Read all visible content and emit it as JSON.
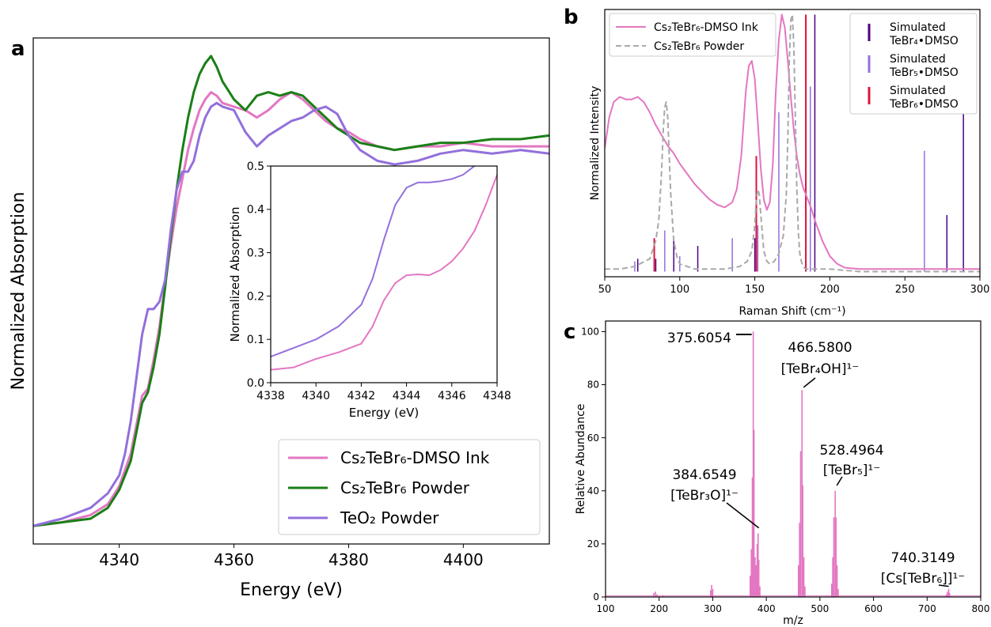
{
  "colors": {
    "ink": "#e377c2",
    "powder": "#1a7f16",
    "teo2": "#9370db",
    "dashed": "#a9a9a9",
    "tebr4": "#4b0082",
    "tebr5": "#9370db",
    "tebr6": "#dc143c",
    "ms": "#e377c2"
  },
  "panels": {
    "a": {
      "letter": "a"
    },
    "b": {
      "letter": "b"
    },
    "c": {
      "letter": "c"
    }
  },
  "chart_data": [
    {
      "id": "a",
      "type": "line",
      "xlabel": "Energy (eV)",
      "ylabel": "Normalized Absorption",
      "xlim": [
        4325,
        4415
      ],
      "ylim": [
        -0.05,
        1.35
      ],
      "yticks_shown": false,
      "xticks": [
        4340,
        4360,
        4380,
        4400
      ],
      "legend_position": "lower-right",
      "series": [
        {
          "name": "Cs₂TeBr₆-DMSO Ink",
          "color_key": "ink",
          "x": [
            4325,
            4330,
            4335,
            4338,
            4340,
            4342,
            4343,
            4344,
            4345,
            4346,
            4347,
            4348,
            4349,
            4350,
            4351,
            4352,
            4353,
            4354,
            4355,
            4356,
            4357,
            4358,
            4360,
            4362,
            4364,
            4366,
            4368,
            4370,
            4372,
            4374,
            4376,
            4378,
            4380,
            4382,
            4385,
            4388,
            4392,
            4396,
            4400,
            4405,
            4410,
            4415
          ],
          "values": [
            0.0,
            0.01,
            0.03,
            0.06,
            0.11,
            0.2,
            0.28,
            0.36,
            0.38,
            0.46,
            0.55,
            0.67,
            0.78,
            0.88,
            0.96,
            1.04,
            1.1,
            1.15,
            1.18,
            1.2,
            1.19,
            1.17,
            1.16,
            1.15,
            1.13,
            1.15,
            1.18,
            1.2,
            1.18,
            1.15,
            1.12,
            1.1,
            1.09,
            1.07,
            1.05,
            1.04,
            1.05,
            1.05,
            1.06,
            1.05,
            1.05,
            1.05
          ]
        },
        {
          "name": "Cs₂TeBr₆ Powder",
          "color_key": "powder",
          "x": [
            4325,
            4330,
            4335,
            4338,
            4340,
            4342,
            4343,
            4344,
            4345,
            4346,
            4347,
            4348,
            4349,
            4350,
            4351,
            4352,
            4353,
            4354,
            4355,
            4356,
            4357,
            4358,
            4360,
            4362,
            4364,
            4366,
            4368,
            4370,
            4372,
            4374,
            4376,
            4378,
            4380,
            4382,
            4385,
            4388,
            4392,
            4396,
            4400,
            4405,
            4410,
            4415
          ],
          "values": [
            0.0,
            0.01,
            0.02,
            0.05,
            0.1,
            0.18,
            0.26,
            0.34,
            0.37,
            0.44,
            0.53,
            0.66,
            0.8,
            0.93,
            1.04,
            1.13,
            1.2,
            1.25,
            1.28,
            1.3,
            1.27,
            1.23,
            1.18,
            1.15,
            1.19,
            1.2,
            1.19,
            1.2,
            1.19,
            1.16,
            1.13,
            1.1,
            1.08,
            1.06,
            1.05,
            1.04,
            1.05,
            1.06,
            1.06,
            1.07,
            1.07,
            1.08
          ]
        },
        {
          "name": "TeO₂ Powder",
          "color_key": "teo2",
          "x": [
            4325,
            4330,
            4335,
            4338,
            4340,
            4341,
            4342,
            4343,
            4344,
            4345,
            4346,
            4347,
            4348,
            4349,
            4350,
            4351,
            4352,
            4353,
            4354,
            4355,
            4356,
            4357,
            4358,
            4360,
            4362,
            4364,
            4366,
            4368,
            4370,
            4372,
            4374,
            4376,
            4378,
            4380,
            4382,
            4385,
            4388,
            4392,
            4396,
            4400,
            4405,
            4410,
            4415
          ],
          "values": [
            0.0,
            0.02,
            0.05,
            0.09,
            0.14,
            0.2,
            0.29,
            0.41,
            0.53,
            0.6,
            0.6,
            0.62,
            0.68,
            0.82,
            0.93,
            0.98,
            0.98,
            1.01,
            1.08,
            1.13,
            1.16,
            1.17,
            1.16,
            1.15,
            1.09,
            1.05,
            1.08,
            1.1,
            1.12,
            1.13,
            1.15,
            1.16,
            1.14,
            1.08,
            1.04,
            1.01,
            1.0,
            1.01,
            1.03,
            1.04,
            1.03,
            1.04,
            1.03
          ]
        }
      ]
    },
    {
      "id": "a-inset",
      "type": "line",
      "xlabel": "Energy (eV)",
      "ylabel": "Normalized Absorption",
      "xlim": [
        4338,
        4348
      ],
      "ylim": [
        0.0,
        0.5
      ],
      "xticks": [
        4338,
        4340,
        4342,
        4344,
        4346,
        4348
      ],
      "yticks": [
        0.0,
        0.1,
        0.2,
        0.3,
        0.4,
        0.5
      ],
      "series": [
        {
          "color_key": "teo2",
          "x": [
            4338,
            4339,
            4340,
            4341,
            4342,
            4342.5,
            4343,
            4343.5,
            4344,
            4344.5,
            4345,
            4345.5,
            4346,
            4346.5,
            4347,
            4347.5,
            4348
          ],
          "values": [
            0.06,
            0.08,
            0.1,
            0.13,
            0.18,
            0.24,
            0.33,
            0.41,
            0.45,
            0.462,
            0.462,
            0.465,
            0.47,
            0.48,
            0.5,
            0.52,
            0.55
          ]
        },
        {
          "color_key": "ink",
          "x": [
            4338,
            4339,
            4340,
            4341,
            4342,
            4342.5,
            4343,
            4343.5,
            4344,
            4344.5,
            4345,
            4345.5,
            4346,
            4346.5,
            4347,
            4347.5,
            4348
          ],
          "values": [
            0.03,
            0.035,
            0.055,
            0.07,
            0.09,
            0.13,
            0.19,
            0.23,
            0.248,
            0.25,
            0.248,
            0.26,
            0.28,
            0.31,
            0.35,
            0.41,
            0.48
          ]
        }
      ]
    },
    {
      "id": "b",
      "type": "line",
      "xlabel": "Raman Shift (cm⁻¹)",
      "ylabel": "Normalized Intensity",
      "xlim": [
        50,
        300
      ],
      "ylim": [
        -0.02,
        1.02
      ],
      "yticks_shown": false,
      "xticks": [
        50,
        100,
        150,
        200,
        250,
        300
      ],
      "legend_position": "top-left and top-right",
      "series": [
        {
          "name": "Cs₂TeBr₆-DMSO Ink",
          "color_key": "ink",
          "x": [
            50,
            53,
            56,
            60,
            64,
            68,
            72,
            76,
            80,
            84,
            88,
            92,
            96,
            100,
            105,
            110,
            115,
            120,
            125,
            130,
            135,
            138,
            141,
            144,
            146,
            148,
            150,
            152,
            154,
            156,
            158,
            160,
            162,
            164,
            166,
            168,
            170,
            172,
            174,
            176,
            178,
            180,
            182,
            184,
            186,
            188,
            190,
            195,
            200,
            205,
            210,
            220,
            230,
            250,
            270,
            300
          ],
          "values": [
            0.48,
            0.6,
            0.66,
            0.68,
            0.67,
            0.67,
            0.68,
            0.66,
            0.62,
            0.57,
            0.53,
            0.49,
            0.46,
            0.42,
            0.38,
            0.34,
            0.31,
            0.28,
            0.26,
            0.25,
            0.27,
            0.32,
            0.45,
            0.7,
            0.8,
            0.82,
            0.75,
            0.58,
            0.4,
            0.28,
            0.24,
            0.27,
            0.42,
            0.7,
            0.9,
            1.0,
            0.95,
            0.82,
            0.68,
            0.55,
            0.45,
            0.38,
            0.33,
            0.3,
            0.27,
            0.24,
            0.2,
            0.12,
            0.06,
            0.03,
            0.015,
            0.01,
            0.01,
            0.01,
            0.01,
            0.01
          ]
        },
        {
          "name": "Cs₂TeBr₆ Powder",
          "color_key": "dashed",
          "dashed": true,
          "x": [
            50,
            60,
            70,
            80,
            84,
            86,
            88,
            89,
            90,
            91,
            92,
            93,
            94,
            96,
            98,
            100,
            110,
            120,
            130,
            140,
            145,
            148,
            150,
            151,
            152,
            153,
            154,
            156,
            158,
            160,
            163,
            166,
            169,
            171,
            172,
            173,
            174,
            175,
            176,
            177,
            178,
            179,
            180,
            181,
            182,
            184,
            186,
            190,
            200,
            220,
            250,
            300
          ],
          "values": [
            0.01,
            0.01,
            0.02,
            0.05,
            0.12,
            0.2,
            0.4,
            0.55,
            0.64,
            0.66,
            0.6,
            0.45,
            0.3,
            0.12,
            0.06,
            0.03,
            0.01,
            0.01,
            0.01,
            0.02,
            0.04,
            0.08,
            0.18,
            0.28,
            0.32,
            0.3,
            0.22,
            0.08,
            0.04,
            0.03,
            0.04,
            0.07,
            0.14,
            0.3,
            0.52,
            0.82,
            0.98,
            1.0,
            0.88,
            0.6,
            0.32,
            0.15,
            0.07,
            0.04,
            0.02,
            0.01,
            0.01,
            0.01,
            0.01,
            0.0,
            0.0,
            0.0
          ]
        }
      ],
      "sticks": [
        {
          "name": "Simulated TeBr₄•DMSO",
          "color_key": "tebr4",
          "x": [
            72,
            84,
            96,
            112,
            150,
            190,
            278,
            289
          ],
          "values": [
            0.05,
            0.05,
            0.12,
            0.1,
            0.13,
            1.0,
            0.22,
            0.62
          ]
        },
        {
          "name": "Simulated TeBr₅•DMSO",
          "color_key": "tebr5",
          "x": [
            70,
            90,
            100,
            135,
            152,
            166,
            187,
            263
          ],
          "values": [
            0.04,
            0.16,
            0.06,
            0.13,
            0.18,
            0.62,
            0.72,
            0.47
          ]
        },
        {
          "name": "Simulated TeBr₆•DMSO",
          "color_key": "tebr6",
          "x": [
            83,
            151,
            184
          ],
          "values": [
            0.13,
            0.45,
            1.0
          ]
        }
      ],
      "legend_left": [
        "Cs₂TeBr₆-DMSO Ink",
        "Cs₂TeBr₆ Powder"
      ],
      "legend_right": [
        {
          "line1": "Simulated",
          "line2": "TeBr₄•DMSO"
        },
        {
          "line1": "Simulated",
          "line2": "TeBr₅•DMSO"
        },
        {
          "line1": "Simulated",
          "line2": "TeBr₆•DMSO"
        }
      ]
    },
    {
      "id": "c",
      "type": "bar",
      "xlabel": "m/z",
      "ylabel": "Relative Abundance",
      "xlim": [
        100,
        800
      ],
      "ylim": [
        0,
        104
      ],
      "xticks": [
        100,
        200,
        300,
        400,
        500,
        600,
        700,
        800
      ],
      "yticks": [
        0,
        20,
        40,
        60,
        80,
        100
      ],
      "peaks": {
        "mz": [
          190,
          193,
          196,
          207,
          296,
          298,
          300,
          370,
          372,
          374,
          375.6,
          377,
          379,
          381,
          383,
          384.65,
          386,
          388,
          460,
          462,
          464,
          466.58,
          468,
          470,
          472,
          522,
          524,
          526,
          528.5,
          530,
          532,
          534,
          736,
          738,
          740.3,
          742
        ],
        "values": [
          1.5,
          2,
          1,
          0.7,
          2.5,
          4.5,
          3,
          8,
          18,
          45,
          100,
          63,
          15,
          12,
          20,
          24,
          14,
          4,
          12,
          28,
          55,
          78,
          42,
          15,
          4,
          5,
          15,
          30,
          40,
          30,
          12,
          3,
          1,
          2,
          3,
          1.5
        ]
      },
      "annotations": [
        {
          "mz": 375.6054,
          "lines": [
            "375.6054"
          ]
        },
        {
          "mz": 466.58,
          "lines": [
            "466.5800",
            "[TeBr₄OH]¹⁻"
          ]
        },
        {
          "mz": 384.6549,
          "lines": [
            "384.6549",
            "[TeBr₃O]¹⁻"
          ]
        },
        {
          "mz": 528.4964,
          "lines": [
            "528.4964",
            "[TeBr₅]¹⁻"
          ]
        },
        {
          "mz": 740.3149,
          "lines": [
            "740.3149",
            "[Cs[TeBr₆]]¹⁻"
          ]
        }
      ]
    }
  ]
}
